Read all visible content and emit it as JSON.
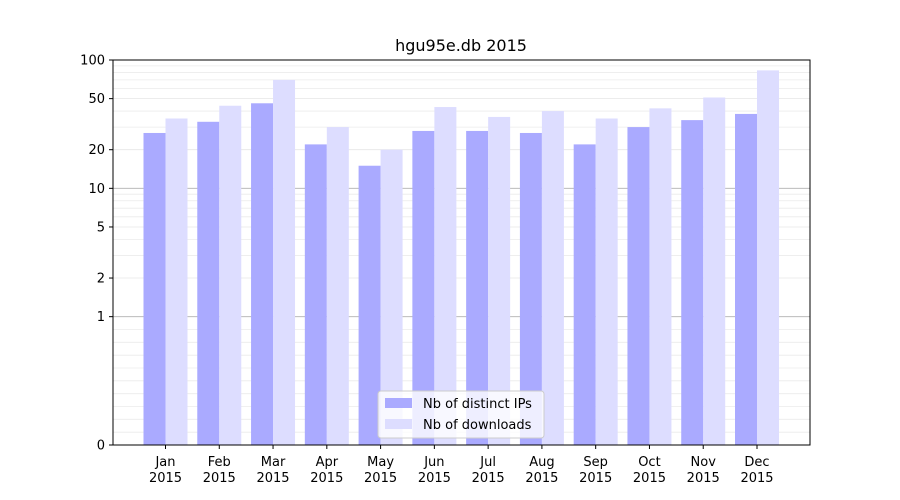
{
  "chart_data": {
    "type": "bar",
    "title": "hgu95e.db 2015",
    "xlabel": "",
    "ylabel": "",
    "yscale": "symlog",
    "ylim": [
      0,
      100
    ],
    "yticks": [
      0,
      1,
      2,
      5,
      10,
      20,
      50,
      100
    ],
    "categories": [
      "Jan\n2015",
      "Feb\n2015",
      "Mar\n2015",
      "Apr\n2015",
      "May\n2015",
      "Jun\n2015",
      "Jul\n2015",
      "Aug\n2015",
      "Sep\n2015",
      "Oct\n2015",
      "Nov\n2015",
      "Dec\n2015"
    ],
    "series": [
      {
        "name": "Nb of distinct IPs",
        "color": "#aaaaff",
        "values": [
          27,
          33,
          46,
          22,
          15,
          28,
          28,
          27,
          22,
          30,
          34,
          38
        ]
      },
      {
        "name": "Nb of downloads",
        "color": "#ddddff",
        "values": [
          35,
          44,
          70,
          30,
          20,
          43,
          36,
          40,
          35,
          42,
          51,
          83
        ]
      }
    ],
    "legend_position": "lower-center",
    "grid": true
  }
}
